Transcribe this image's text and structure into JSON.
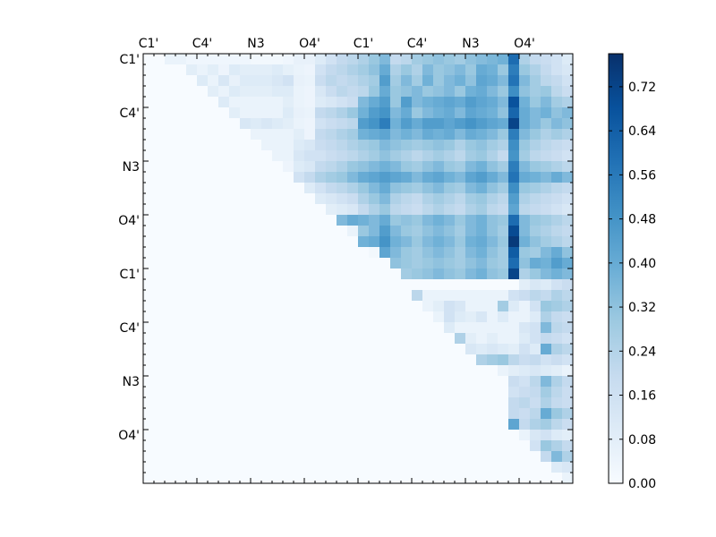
{
  "chart_data": {
    "type": "heatmap",
    "title": "",
    "grid": false,
    "rows": 40,
    "cols": 40,
    "x_tick_labels": [
      "C1'",
      "C4'",
      "N3",
      "O4'",
      "C1'",
      "C4'",
      "N3",
      "O4'"
    ],
    "y_tick_labels": [
      "C1'",
      "C4'",
      "N3",
      "O4'",
      "C1'",
      "C4'",
      "N3",
      "O4'"
    ],
    "major_tick_index": [
      0,
      5,
      10,
      15,
      20,
      25,
      30,
      35
    ],
    "colorscale": "Blues",
    "colorscale_stops": [
      "#f7fbff",
      "#deebf7",
      "#c6dbef",
      "#9ecae1",
      "#6baed6",
      "#4292c6",
      "#2171b5",
      "#08519c",
      "#08306b"
    ],
    "zmin": 0.0,
    "zmax": 0.78,
    "colorbar_ticks": [
      "0.00",
      "0.08",
      "0.16",
      "0.24",
      "0.32",
      "0.40",
      "0.48",
      "0.56",
      "0.64",
      "0.72"
    ],
    "colorbar_tick_values": [
      0.0,
      0.08,
      0.16,
      0.24,
      0.32,
      0.4,
      0.48,
      0.56,
      0.64,
      0.72
    ],
    "matrix_text": [
      "0.00 0.00 0.05 0.05 0.03 0.03 0.03 0.03 0.03 0.03 0.02 0.02 0.02 0.03 0.06 0.06 0.10 0.15 0.20 0.22 0.25 0.30 0.35 0.20 0.22 0.28 0.30 0.32 0.30 0.28 0.32 0.34 0.36 0.38 0.60 0.25 0.20 0.18 0.15 0.10",
      "0.00 0.00 0.00 0.00 0.08 0.05 0.08 0.04 0.10 0.08 0.08 0.08 0.10 0.07 0.05 0.04 0.15 0.20 0.22 0.25 0.28 0.32 0.40 0.25 0.30 0.25 0.35 0.30 0.32 0.35 0.30 0.40 0.38 0.30 0.55 0.30 0.25 0.20 0.15 0.12",
      "0.00 0.00 0.00 0.00 0.00 0.10 0.05 0.12 0.06 0.10 0.10 0.10 0.12 0.15 0.06 0.05 0.18 0.22 0.20 0.22 0.25 0.28 0.45 0.28 0.35 0.28 0.38 0.30 0.35 0.38 0.32 0.42 0.40 0.35 0.58 0.35 0.28 0.22 0.20 0.15",
      "0.00 0.00 0.00 0.00 0.00 0.00 0.08 0.05 0.10 0.08 0.08 0.08 0.10 0.10 0.05 0.04 0.12 0.18 0.22 0.20 0.22 0.30 0.40 0.30 0.32 0.35 0.30 0.32 0.35 0.30 0.38 0.40 0.35 0.30 0.50 0.32 0.28 0.30 0.22 0.18",
      "0.00 0.00 0.00 0.00 0.00 0.00 0.00 0.10 0.05 0.05 0.05 0.05 0.05 0.08 0.05 0.04 0.10 0.12 0.15 0.18 0.35 0.40 0.45 0.30 0.45 0.35 0.38 0.40 0.42 0.40 0.45 0.42 0.40 0.35 0.68 0.38 0.30 0.35 0.28 0.25",
      "0.00 0.00 0.00 0.00 0.00 0.00 0.00 0.00 0.08 0.05 0.05 0.05 0.05 0.10 0.06 0.05 0.20 0.22 0.25 0.30 0.38 0.45 0.48 0.35 0.40 0.30 0.35 0.38 0.40 0.35 0.42 0.40 0.38 0.32 0.62 0.40 0.35 0.38 0.32 0.35",
      "0.00 0.00 0.00 0.00 0.00 0.00 0.00 0.00 0.00 0.12 0.10 0.12 0.10 0.08 0.05 0.04 0.15 0.18 0.20 0.22 0.45 0.48 0.55 0.38 0.45 0.40 0.45 0.45 0.42 0.45 0.48 0.45 0.42 0.40 0.72 0.40 0.35 0.30 0.35 0.32",
      "0.00 0.00 0.00 0.00 0.00 0.00 0.00 0.00 0.00 0.00 0.05 0.05 0.05 0.05 0.08 0.04 0.20 0.22 0.25 0.28 0.38 0.40 0.42 0.35 0.38 0.35 0.40 0.38 0.40 0.35 0.40 0.38 0.35 0.30 0.55 0.35 0.30 0.25 0.28 0.25",
      "0.00 0.00 0.00 0.00 0.00 0.00 0.00 0.00 0.00 0.00 0.00 0.05 0.05 0.05 0.10 0.12 0.18 0.20 0.22 0.25 0.28 0.30 0.35 0.32 0.30 0.28 0.30 0.32 0.30 0.25 0.30 0.32 0.28 0.25 0.50 0.30 0.25 0.22 0.20 0.18",
      "0.00 0.00 0.00 0.00 0.00 0.00 0.00 0.00 0.00 0.00 0.00 0.00 0.05 0.05 0.12 0.15 0.15 0.18 0.20 0.22 0.25 0.28 0.32 0.28 0.25 0.22 0.25 0.28 0.25 0.22 0.28 0.30 0.25 0.20 0.48 0.28 0.22 0.20 0.18 0.15",
      "0.00 0.00 0.00 0.00 0.00 0.00 0.00 0.00 0.00 0.00 0.00 0.00 0.00 0.04 0.10 0.12 0.20 0.22 0.25 0.30 0.32 0.35 0.38 0.35 0.30 0.28 0.32 0.35 0.30 0.28 0.35 0.38 0.32 0.28 0.55 0.35 0.30 0.28 0.25 0.22",
      "0.00 0.00 0.00 0.00 0.00 0.00 0.00 0.00 0.00 0.00 0.00 0.00 0.00 0.00 0.15 0.20 0.25 0.28 0.30 0.35 0.40 0.42 0.45 0.42 0.40 0.35 0.40 0.42 0.38 0.35 0.42 0.45 0.40 0.35 0.58 0.40 0.38 0.35 0.40 0.35",
      "0.00 0.00 0.00 0.00 0.00 0.00 0.00 0.00 0.00 0.00 0.00 0.00 0.00 0.00 0.00 0.10 0.15 0.20 0.22 0.25 0.30 0.35 0.40 0.32 0.30 0.28 0.32 0.35 0.30 0.28 0.35 0.38 0.32 0.28 0.50 0.30 0.28 0.25 0.22 0.20",
      "0.00 0.00 0.00 0.00 0.00 0.00 0.00 0.00 0.00 0.00 0.00 0.00 0.00 0.00 0.00 0.00 0.10 0.12 0.15 0.18 0.25 0.30 0.35 0.25 0.22 0.20 0.25 0.28 0.25 0.22 0.28 0.30 0.25 0.22 0.45 0.25 0.22 0.20 0.18 0.15",
      "0.00 0.00 0.00 0.00 0.00 0.00 0.00 0.00 0.00 0.00 0.00 0.00 0.00 0.00 0.00 0.00 0.00 0.08 0.10 0.12 0.20 0.25 0.30 0.22 0.20 0.18 0.22 0.25 0.22 0.20 0.25 0.28 0.22 0.20 0.42 0.22 0.20 0.18 0.15 0.12",
      "0.00 0.00 0.00 0.00 0.00 0.00 0.00 0.00 0.00 0.00 0.00 0.00 0.00 0.00 0.00 0.00 0.00 0.00 0.35 0.40 0.38 0.35 0.40 0.30 0.32 0.30 0.35 0.38 0.35 0.30 0.35 0.38 0.32 0.30 0.60 0.35 0.30 0.28 0.25 0.22",
      "0.00 0.00 0.00 0.00 0.00 0.00 0.00 0.00 0.00 0.00 0.00 0.00 0.00 0.00 0.00 0.00 0.00 0.00 0.00 0.05 0.30 0.35 0.45 0.35 0.30 0.28 0.32 0.35 0.32 0.28 0.35 0.38 0.32 0.28 0.70 0.35 0.28 0.25 0.22 0.20",
      "0.00 0.00 0.00 0.00 0.00 0.00 0.00 0.00 0.00 0.00 0.00 0.00 0.00 0.00 0.00 0.00 0.00 0.00 0.00 0.00 0.38 0.40 0.48 0.38 0.35 0.30 0.35 0.38 0.35 0.30 0.38 0.40 0.35 0.30 0.75 0.38 0.32 0.28 0.25 0.22",
      "0.00 0.00 0.00 0.00 0.00 0.00 0.00 0.00 0.00 0.00 0.00 0.00 0.00 0.00 0.00 0.00 0.00 0.00 0.00 0.00 0.00 0.02 0.42 0.35 0.30 0.28 0.32 0.35 0.32 0.28 0.35 0.38 0.32 0.28 0.65 0.30 0.28 0.35 0.40 0.32",
      "0.00 0.00 0.00 0.00 0.00 0.00 0.00 0.00 0.00 0.00 0.00 0.00 0.00 0.00 0.00 0.00 0.00 0.00 0.00 0.00 0.00 0.00 0.00 0.32 0.30 0.28 0.30 0.32 0.30 0.28 0.32 0.35 0.30 0.28 0.60 0.32 0.40 0.38 0.45 0.40",
      "0.00 0.00 0.00 0.00 0.00 0.00 0.00 0.00 0.00 0.00 0.00 0.00 0.00 0.00 0.00 0.00 0.00 0.00 0.00 0.00 0.00 0.00 0.00 0.00 0.28 0.30 0.32 0.35 0.32 0.30 0.35 0.38 0.32 0.30 0.72 0.25 0.30 0.35 0.38 0.35",
      "0.00 0.00 0.00 0.00 0.00 0.00 0.00 0.00 0.00 0.00 0.00 0.00 0.00 0.00 0.00 0.00 0.00 0.00 0.00 0.00 0.00 0.00 0.00 0.00 0.00 0.00 0.00 0.00 0.00 0.00 0.00 0.00 0.00 0.00 0.00 0.08 0.12 0.10 0.15 0.18",
      "0.00 0.00 0.00 0.00 0.00 0.00 0.00 0.00 0.00 0.00 0.00 0.00 0.00 0.00 0.00 0.00 0.00 0.00 0.00 0.00 0.00 0.00 0.00 0.00 0.00 0.22 0.05 0.05 0.05 0.05 0.05 0.05 0.05 0.05 0.15 0.18 0.22 0.20 0.25 0.22",
      "0.00 0.00 0.00 0.00 0.00 0.00 0.00 0.00 0.00 0.00 0.00 0.00 0.00 0.00 0.00 0.00 0.00 0.00 0.00 0.00 0.00 0.00 0.00 0.00 0.00 0.00 0.05 0.08 0.15 0.12 0.05 0.05 0.05 0.28 0.10 0.05 0.15 0.30 0.28 0.25",
      "0.00 0.00 0.00 0.00 0.00 0.00 0.00 0.00 0.00 0.00 0.00 0.00 0.00 0.00 0.00 0.00 0.00 0.00 0.00 0.00 0.00 0.00 0.00 0.00 0.00 0.00 0.00 0.05 0.15 0.10 0.08 0.12 0.05 0.10 0.05 0.05 0.10 0.25 0.20 0.18",
      "0.00 0.00 0.00 0.00 0.00 0.00 0.00 0.00 0.00 0.00 0.00 0.00 0.00 0.00 0.00 0.00 0.00 0.00 0.00 0.00 0.00 0.00 0.00 0.00 0.00 0.00 0.00 0.00 0.10 0.05 0.05 0.05 0.05 0.05 0.05 0.12 0.15 0.35 0.22 0.20",
      "0.00 0.00 0.00 0.00 0.00 0.00 0.00 0.00 0.00 0.00 0.00 0.00 0.00 0.00 0.00 0.00 0.00 0.00 0.00 0.00 0.00 0.00 0.00 0.00 0.00 0.00 0.00 0.00 0.00 0.25 0.08 0.05 0.08 0.05 0.05 0.10 0.15 0.20 0.18 0.15",
      "0.00 0.00 0.00 0.00 0.00 0.00 0.00 0.00 0.00 0.00 0.00 0.00 0.00 0.00 0.00 0.00 0.00 0.00 0.00 0.00 0.00 0.00 0.00 0.00 0.00 0.00 0.00 0.00 0.00 0.00 0.12 0.10 0.12 0.10 0.08 0.15 0.10 0.40 0.25 0.22",
      "0.00 0.00 0.00 0.00 0.00 0.00 0.00 0.00 0.00 0.00 0.00 0.00 0.00 0.00 0.00 0.00 0.00 0.00 0.00 0.00 0.00 0.00 0.00 0.00 0.00 0.00 0.00 0.00 0.00 0.00 0.00 0.25 0.28 0.30 0.22 0.18 0.20 0.15 0.18 0.15",
      "0.00 0.00 0.00 0.00 0.00 0.00 0.00 0.00 0.00 0.00 0.00 0.00 0.00 0.00 0.00 0.00 0.00 0.00 0.00 0.00 0.00 0.00 0.00 0.00 0.00 0.00 0.00 0.00 0.00 0.00 0.00 0.00 0.00 0.05 0.08 0.10 0.12 0.10 0.08 0.05",
      "0.00 0.00 0.00 0.00 0.00 0.00 0.00 0.00 0.00 0.00 0.00 0.00 0.00 0.00 0.00 0.00 0.00 0.00 0.00 0.00 0.00 0.00 0.00 0.00 0.00 0.00 0.00 0.00 0.00 0.00 0.00 0.00 0.00 0.00 0.18 0.15 0.22 0.35 0.25 0.20",
      "0.00 0.00 0.00 0.00 0.00 0.00 0.00 0.00 0.00 0.00 0.00 0.00 0.00 0.00 0.00 0.00 0.00 0.00 0.00 0.00 0.00 0.00 0.00 0.00 0.00 0.00 0.00 0.00 0.00 0.00 0.00 0.00 0.00 0.00 0.15 0.18 0.20 0.28 0.22 0.18",
      "0.00 0.00 0.00 0.00 0.00 0.00 0.00 0.00 0.00 0.00 0.00 0.00 0.00 0.00 0.00 0.00 0.00 0.00 0.00 0.00 0.00 0.00 0.00 0.00 0.00 0.00 0.00 0.00 0.00 0.00 0.00 0.00 0.00 0.00 0.20 0.22 0.18 0.25 0.20 0.18",
      "0.00 0.00 0.00 0.00 0.00 0.00 0.00 0.00 0.00 0.00 0.00 0.00 0.00 0.00 0.00 0.00 0.00 0.00 0.00 0.00 0.00 0.00 0.00 0.00 0.00 0.00 0.00 0.00 0.00 0.00 0.00 0.00 0.00 0.00 0.20 0.18 0.22 0.40 0.30 0.25",
      "0.00 0.00 0.00 0.00 0.00 0.00 0.00 0.00 0.00 0.00 0.00 0.00 0.00 0.00 0.00 0.00 0.00 0.00 0.00 0.00 0.00 0.00 0.00 0.00 0.00 0.00 0.00 0.00 0.00 0.00 0.00 0.00 0.00 0.00 0.42 0.20 0.25 0.28 0.22 0.18",
      "0.00 0.00 0.00 0.00 0.00 0.00 0.00 0.00 0.00 0.00 0.00 0.00 0.00 0.00 0.00 0.00 0.00 0.00 0.00 0.00 0.00 0.00 0.00 0.00 0.00 0.00 0.00 0.00 0.00 0.00 0.00 0.00 0.00 0.00 0.00 0.05 0.12 0.15 0.10 0.08",
      "0.00 0.00 0.00 0.00 0.00 0.00 0.00 0.00 0.00 0.00 0.00 0.00 0.00 0.00 0.00 0.00 0.00 0.00 0.00 0.00 0.00 0.00 0.00 0.00 0.00 0.00 0.00 0.00 0.00 0.00 0.00 0.00 0.00 0.00 0.00 0.00 0.15 0.30 0.25 0.20",
      "0.00 0.00 0.00 0.00 0.00 0.00 0.00 0.00 0.00 0.00 0.00 0.00 0.00 0.00 0.00 0.00 0.00 0.00 0.00 0.00 0.00 0.00 0.00 0.00 0.00 0.00 0.00 0.00 0.00 0.00 0.00 0.00 0.00 0.00 0.00 0.00 0.00 0.20 0.35 0.25",
      "0.00 0.00 0.00 0.00 0.00 0.00 0.00 0.00 0.00 0.00 0.00 0.00 0.00 0.00 0.00 0.00 0.00 0.00 0.00 0.00 0.00 0.00 0.00 0.00 0.00 0.00 0.00 0.00 0.00 0.00 0.00 0.00 0.00 0.00 0.00 0.00 0.00 0.00 0.10 0.12",
      "0.00 0.00 0.00 0.00 0.00 0.00 0.00 0.00 0.00 0.00 0.00 0.00 0.00 0.00 0.00 0.00 0.00 0.00 0.00 0.00 0.00 0.00 0.00 0.00 0.00 0.00 0.00 0.00 0.00 0.00 0.00 0.00 0.00 0.00 0.00 0.00 0.00 0.00 0.00 0.05"
    ]
  }
}
